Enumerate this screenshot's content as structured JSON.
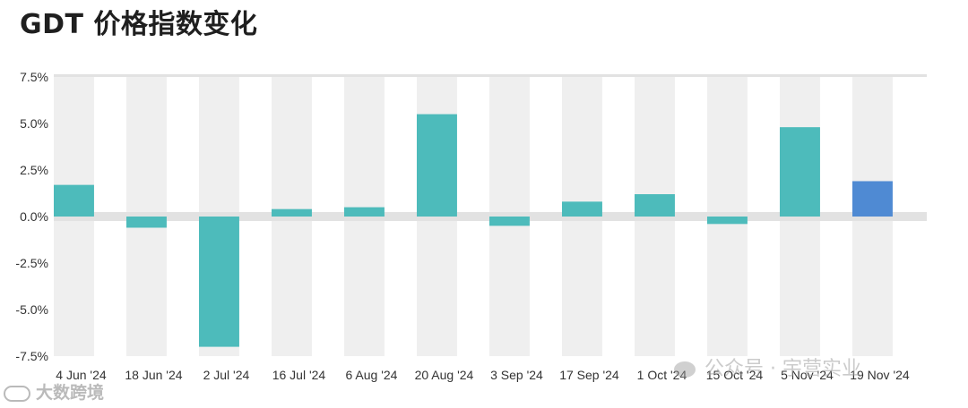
{
  "title": "GDT 价格指数变化",
  "watermarks": {
    "left_text": "大数跨境",
    "right_text": "公众号 · 宇营实业"
  },
  "colors": {
    "bar": "#4dbbbb",
    "bar_highlight": "#4f8ad3",
    "band": "#efefef",
    "zero_line": "#e2e2e2",
    "top_line": "#e2e2e2"
  },
  "chart_data": {
    "type": "bar",
    "title": "GDT 价格指数变化",
    "xlabel": "",
    "ylabel": "",
    "categories": [
      "4 Jun '24",
      "18 Jun '24",
      "2 Jul '24",
      "16 Jul '24",
      "6 Aug '24",
      "20 Aug '24",
      "3 Sep '24",
      "17 Sep '24",
      "1 Oct '24",
      "15 Oct '24",
      "5 Nov '24",
      "19 Nov '24"
    ],
    "values": [
      1.7,
      -0.6,
      -7.0,
      0.4,
      0.5,
      5.5,
      -0.5,
      0.8,
      1.2,
      -0.4,
      4.8,
      1.9
    ],
    "highlight_index": 11,
    "ylim": [
      -7.5,
      7.5
    ],
    "yticks": [
      7.5,
      5.0,
      2.5,
      0.0,
      -2.5,
      -5.0,
      -7.5
    ],
    "ytick_labels": [
      "7.5%",
      "5.0%",
      "2.5%",
      "0.0%",
      "-2.5%",
      "-5.0%",
      "-7.5%"
    ],
    "grid": false,
    "legend": "none"
  }
}
